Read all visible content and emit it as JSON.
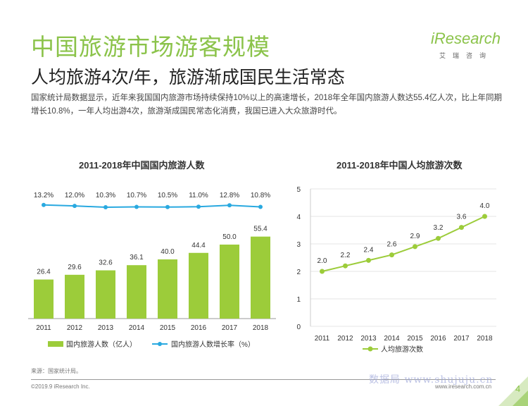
{
  "header": {
    "title": "中国旅游市场游客规模",
    "subtitle": "人均旅游4次/年，旅游渐成国民生活常态",
    "paragraph": "国家统计局数据显示，近年来我国国内旅游市场持续保持10%以上的高速增长，2018年全年国内旅游人数达55.4亿人次，比上年同期增长10.8%，一年人均出游4次，旅游渐成国民常态化消费，我国已进入大众旅游时代。"
  },
  "logo": {
    "main": "iResearch",
    "sub": "艾瑞咨询"
  },
  "colors": {
    "accent": "#8bc34a",
    "bar": "#9ccc3a",
    "line": "#29a9e0",
    "line2": "#9ccc3a"
  },
  "chart_data": [
    {
      "type": "bar",
      "title": "2011-2018年中国国内旅游人数",
      "categories": [
        "2011",
        "2012",
        "2013",
        "2014",
        "2015",
        "2016",
        "2017",
        "2018"
      ],
      "series": [
        {
          "name": "国内旅游人数（亿人）",
          "type": "bar",
          "values": [
            26.4,
            29.6,
            32.6,
            36.1,
            40.0,
            44.4,
            50.0,
            55.4
          ],
          "labels": [
            "26.4",
            "29.6",
            "32.6",
            "36.1",
            "40.0",
            "44.4",
            "50.0",
            "55.4"
          ]
        },
        {
          "name": "国内旅游人数增长率（%）",
          "type": "line",
          "values": [
            13.2,
            12.0,
            10.3,
            10.7,
            10.5,
            11.0,
            12.8,
            10.8
          ],
          "labels": [
            "13.2%",
            "12.0%",
            "10.3%",
            "10.7%",
            "10.5%",
            "11.0%",
            "12.8%",
            "10.8%"
          ]
        }
      ]
    },
    {
      "type": "line",
      "title": "2011-2018年中国人均旅游次数",
      "categories": [
        "2011",
        "2012",
        "2013",
        "2014",
        "2015",
        "2016",
        "2017",
        "2018"
      ],
      "ylim": [
        0,
        5
      ],
      "yticks": [
        "0",
        "1",
        "2",
        "3",
        "4",
        "5"
      ],
      "series": [
        {
          "name": "人均旅游次数",
          "values": [
            2.0,
            2.2,
            2.4,
            2.6,
            2.9,
            3.2,
            3.6,
            4.0
          ],
          "labels": [
            "2.0",
            "2.2",
            "2.4",
            "2.6",
            "2.9",
            "3.2",
            "3.6",
            "4.0"
          ]
        }
      ]
    }
  ],
  "footer": {
    "source": "来源：国家统计局。",
    "copyright": "©2019.9 iResearch Inc.",
    "url": "www.iresearch.com.cn",
    "watermark": "数据局 www.shujuju.cn",
    "page": "4"
  }
}
